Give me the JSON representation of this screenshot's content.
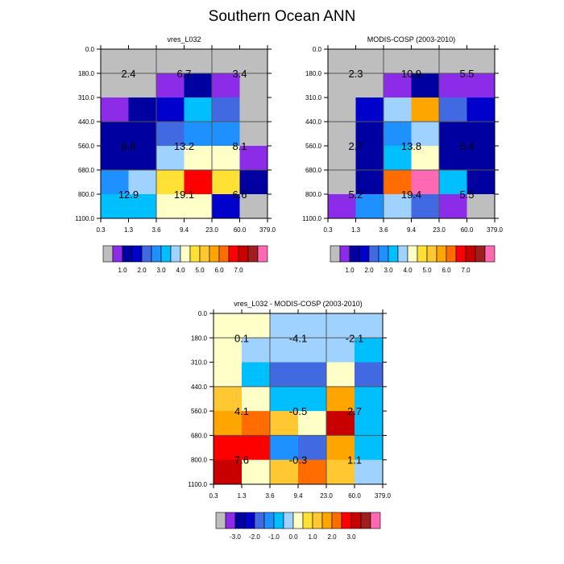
{
  "page": {
    "title": "Southern Ocean ANN"
  },
  "colors": {
    "bar": [
      "#bebebe",
      "#8c2ce8",
      "#0000a0",
      "#0000cd",
      "#4169e1",
      "#1e90ff",
      "#00bfff",
      "#a0d2ff",
      "#ffffc8",
      "#ffe135",
      "#ffc832",
      "#ffa500",
      "#ff6d00",
      "#ff0000",
      "#c80000",
      "#a01e1e",
      "#ff69b4"
    ],
    "border": "#555555"
  },
  "chart_data": [
    {
      "type": "heatmap",
      "title": "vres_L032",
      "x_ticks": [
        "0.3",
        "1.3",
        "3.6",
        "9.4",
        "23.0",
        "60.0",
        "379.0"
      ],
      "y_ticks": [
        "0.0",
        "180.0",
        "310.0",
        "440.0",
        "560.0",
        "680.0",
        "800.0",
        "1100.0"
      ],
      "color_index": [
        [
          0,
          0,
          0,
          0,
          0,
          0
        ],
        [
          0,
          0,
          1,
          2,
          1,
          0
        ],
        [
          1,
          2,
          3,
          6,
          4,
          0
        ],
        [
          2,
          2,
          4,
          5,
          5,
          0
        ],
        [
          2,
          2,
          7,
          8,
          8,
          1
        ],
        [
          5,
          7,
          9,
          13,
          9,
          2
        ],
        [
          6,
          6,
          8,
          8,
          3,
          0
        ]
      ],
      "annotations": [
        {
          "x": 1,
          "y": 1,
          "text": "2.4"
        },
        {
          "x": 3,
          "y": 1,
          "text": "6.7"
        },
        {
          "x": 5,
          "y": 1,
          "text": "3.4"
        },
        {
          "x": 1,
          "y": 4,
          "text": "6.8"
        },
        {
          "x": 3,
          "y": 4,
          "text": "13.2"
        },
        {
          "x": 5,
          "y": 4,
          "text": "8.1"
        },
        {
          "x": 1,
          "y": 6,
          "text": "12.9"
        },
        {
          "x": 3,
          "y": 6,
          "text": "19.1"
        },
        {
          "x": 5,
          "y": 6,
          "text": "6.6"
        }
      ],
      "colorbar_labels": [
        "1.0",
        "2.0",
        "3.0",
        "4.0",
        "5.0",
        "6.0",
        "7.0"
      ]
    },
    {
      "type": "heatmap",
      "title": "MODIS-COSP (2003-2010)",
      "x_ticks": [
        "0.3",
        "1.3",
        "3.6",
        "9.4",
        "23.0",
        "60.0",
        "379.0"
      ],
      "y_ticks": [
        "0.0",
        "180.0",
        "310.0",
        "440.0",
        "560.0",
        "680.0",
        "800.0",
        "1100.0"
      ],
      "color_index": [
        [
          0,
          0,
          0,
          0,
          0,
          0
        ],
        [
          0,
          0,
          1,
          2,
          1,
          1
        ],
        [
          0,
          3,
          7,
          11,
          4,
          3
        ],
        [
          0,
          2,
          5,
          7,
          2,
          2
        ],
        [
          0,
          2,
          6,
          8,
          2,
          2
        ],
        [
          0,
          2,
          12,
          16,
          6,
          2
        ],
        [
          1,
          5,
          7,
          4,
          1,
          0
        ]
      ],
      "annotations": [
        {
          "x": 1,
          "y": 1,
          "text": "2.3"
        },
        {
          "x": 3,
          "y": 1,
          "text": "10.9"
        },
        {
          "x": 5,
          "y": 1,
          "text": "5.5"
        },
        {
          "x": 1,
          "y": 4,
          "text": "2.7"
        },
        {
          "x": 3,
          "y": 4,
          "text": "13.8"
        },
        {
          "x": 5,
          "y": 4,
          "text": "5.4"
        },
        {
          "x": 1,
          "y": 6,
          "text": "5.2"
        },
        {
          "x": 3,
          "y": 6,
          "text": "19.4"
        },
        {
          "x": 5,
          "y": 6,
          "text": "5.5"
        }
      ],
      "colorbar_labels": [
        "1.0",
        "2.0",
        "3.0",
        "4.0",
        "5.0",
        "6.0",
        "7.0"
      ]
    },
    {
      "type": "heatmap",
      "title": "vres_L032 - MODIS-COSP (2003-2010)",
      "x_ticks": [
        "0.3",
        "1.3",
        "3.6",
        "9.4",
        "23.0",
        "60.0",
        "379.0"
      ],
      "y_ticks": [
        "0.0",
        "180.0",
        "310.0",
        "440.0",
        "560.0",
        "680.0",
        "800.0",
        "1100.0"
      ],
      "color_index": [
        [
          8,
          8,
          7,
          7,
          7,
          7
        ],
        [
          8,
          7,
          7,
          7,
          7,
          6
        ],
        [
          8,
          6,
          4,
          4,
          8,
          4
        ],
        [
          10,
          8,
          6,
          6,
          11,
          6
        ],
        [
          11,
          12,
          10,
          8,
          14,
          6
        ],
        [
          13,
          13,
          5,
          4,
          11,
          6
        ],
        [
          14,
          8,
          10,
          12,
          10,
          7
        ]
      ],
      "annotations": [
        {
          "x": 1,
          "y": 1,
          "text": "0.1"
        },
        {
          "x": 3,
          "y": 1,
          "text": "-4.1"
        },
        {
          "x": 5,
          "y": 1,
          "text": "-2.1"
        },
        {
          "x": 1,
          "y": 4,
          "text": "4.1"
        },
        {
          "x": 3,
          "y": 4,
          "text": "-0.5"
        },
        {
          "x": 5,
          "y": 4,
          "text": "2.7"
        },
        {
          "x": 1,
          "y": 6,
          "text": "7.6"
        },
        {
          "x": 3,
          "y": 6,
          "text": "-0.3"
        },
        {
          "x": 5,
          "y": 6,
          "text": "1.1"
        }
      ],
      "colorbar_labels": [
        "-3.0",
        "-2.0",
        "-1.0",
        "0.0",
        "1.0",
        "2.0",
        "3.0"
      ]
    }
  ]
}
